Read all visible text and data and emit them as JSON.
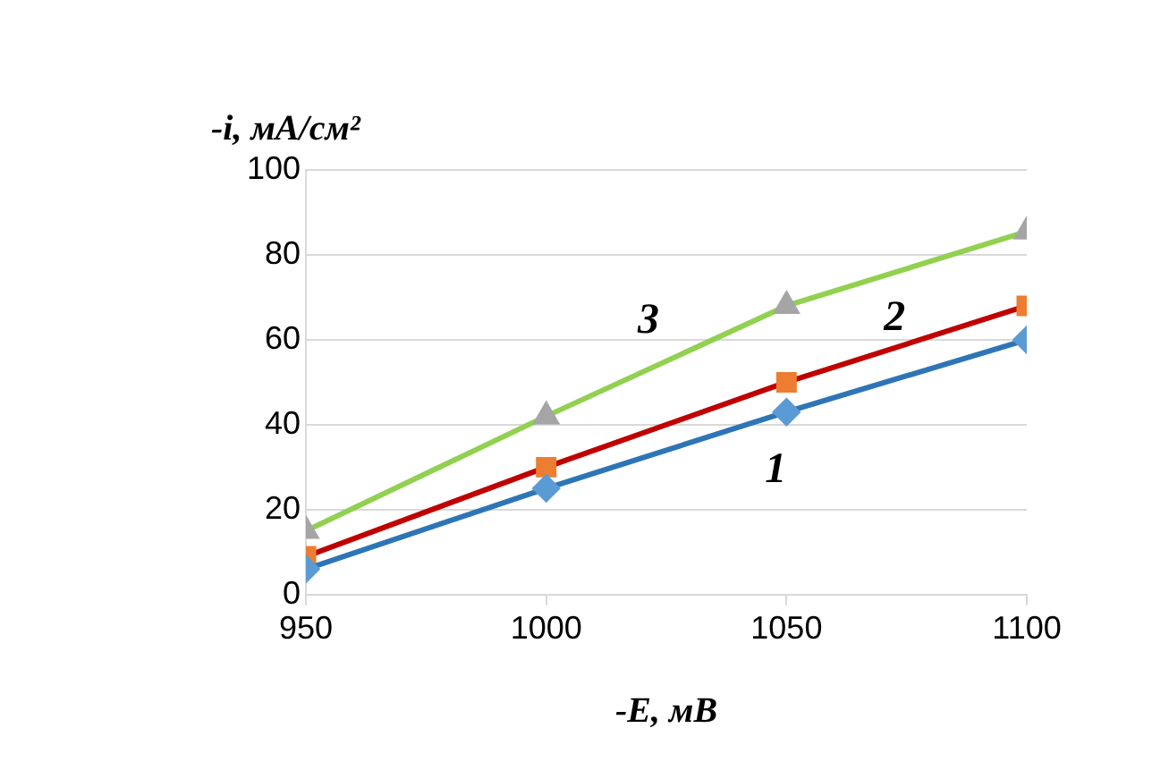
{
  "chart_data": {
    "type": "line",
    "xlabel": "-E, мВ",
    "ylabel": "-i, мА/см²",
    "x": [
      950,
      1000,
      1050,
      1100
    ],
    "series": [
      {
        "name": "1",
        "color": "#2e75b6",
        "colors": [
          "#5b9bd5",
          "#5b9bd5",
          "#5b9bd5",
          "#5b9bd5"
        ],
        "marker": "diamond",
        "values": [
          6,
          25,
          43,
          60
        ]
      },
      {
        "name": "2",
        "color": "#c00000",
        "colors": [
          "#ed7d31",
          "#ed7d31",
          "#ed7d31",
          "#ed7d31"
        ],
        "marker": "square",
        "values": [
          9,
          30,
          50,
          68
        ]
      },
      {
        "name": "3",
        "color": "#92d050",
        "colors": [
          "#a5a5a5",
          "#a5a5a5",
          "#a5a5a5",
          "#a5a5a5"
        ],
        "marker": "triangle",
        "values": [
          15,
          42,
          68,
          85.5
        ]
      }
    ],
    "xlim": [
      950,
      1100
    ],
    "xticks": [
      950,
      1000,
      1050,
      1100
    ],
    "ylim": [
      0,
      100
    ],
    "yticks": [
      0,
      20,
      40,
      60,
      80,
      100
    ],
    "grid": "y",
    "legend": false
  }
}
